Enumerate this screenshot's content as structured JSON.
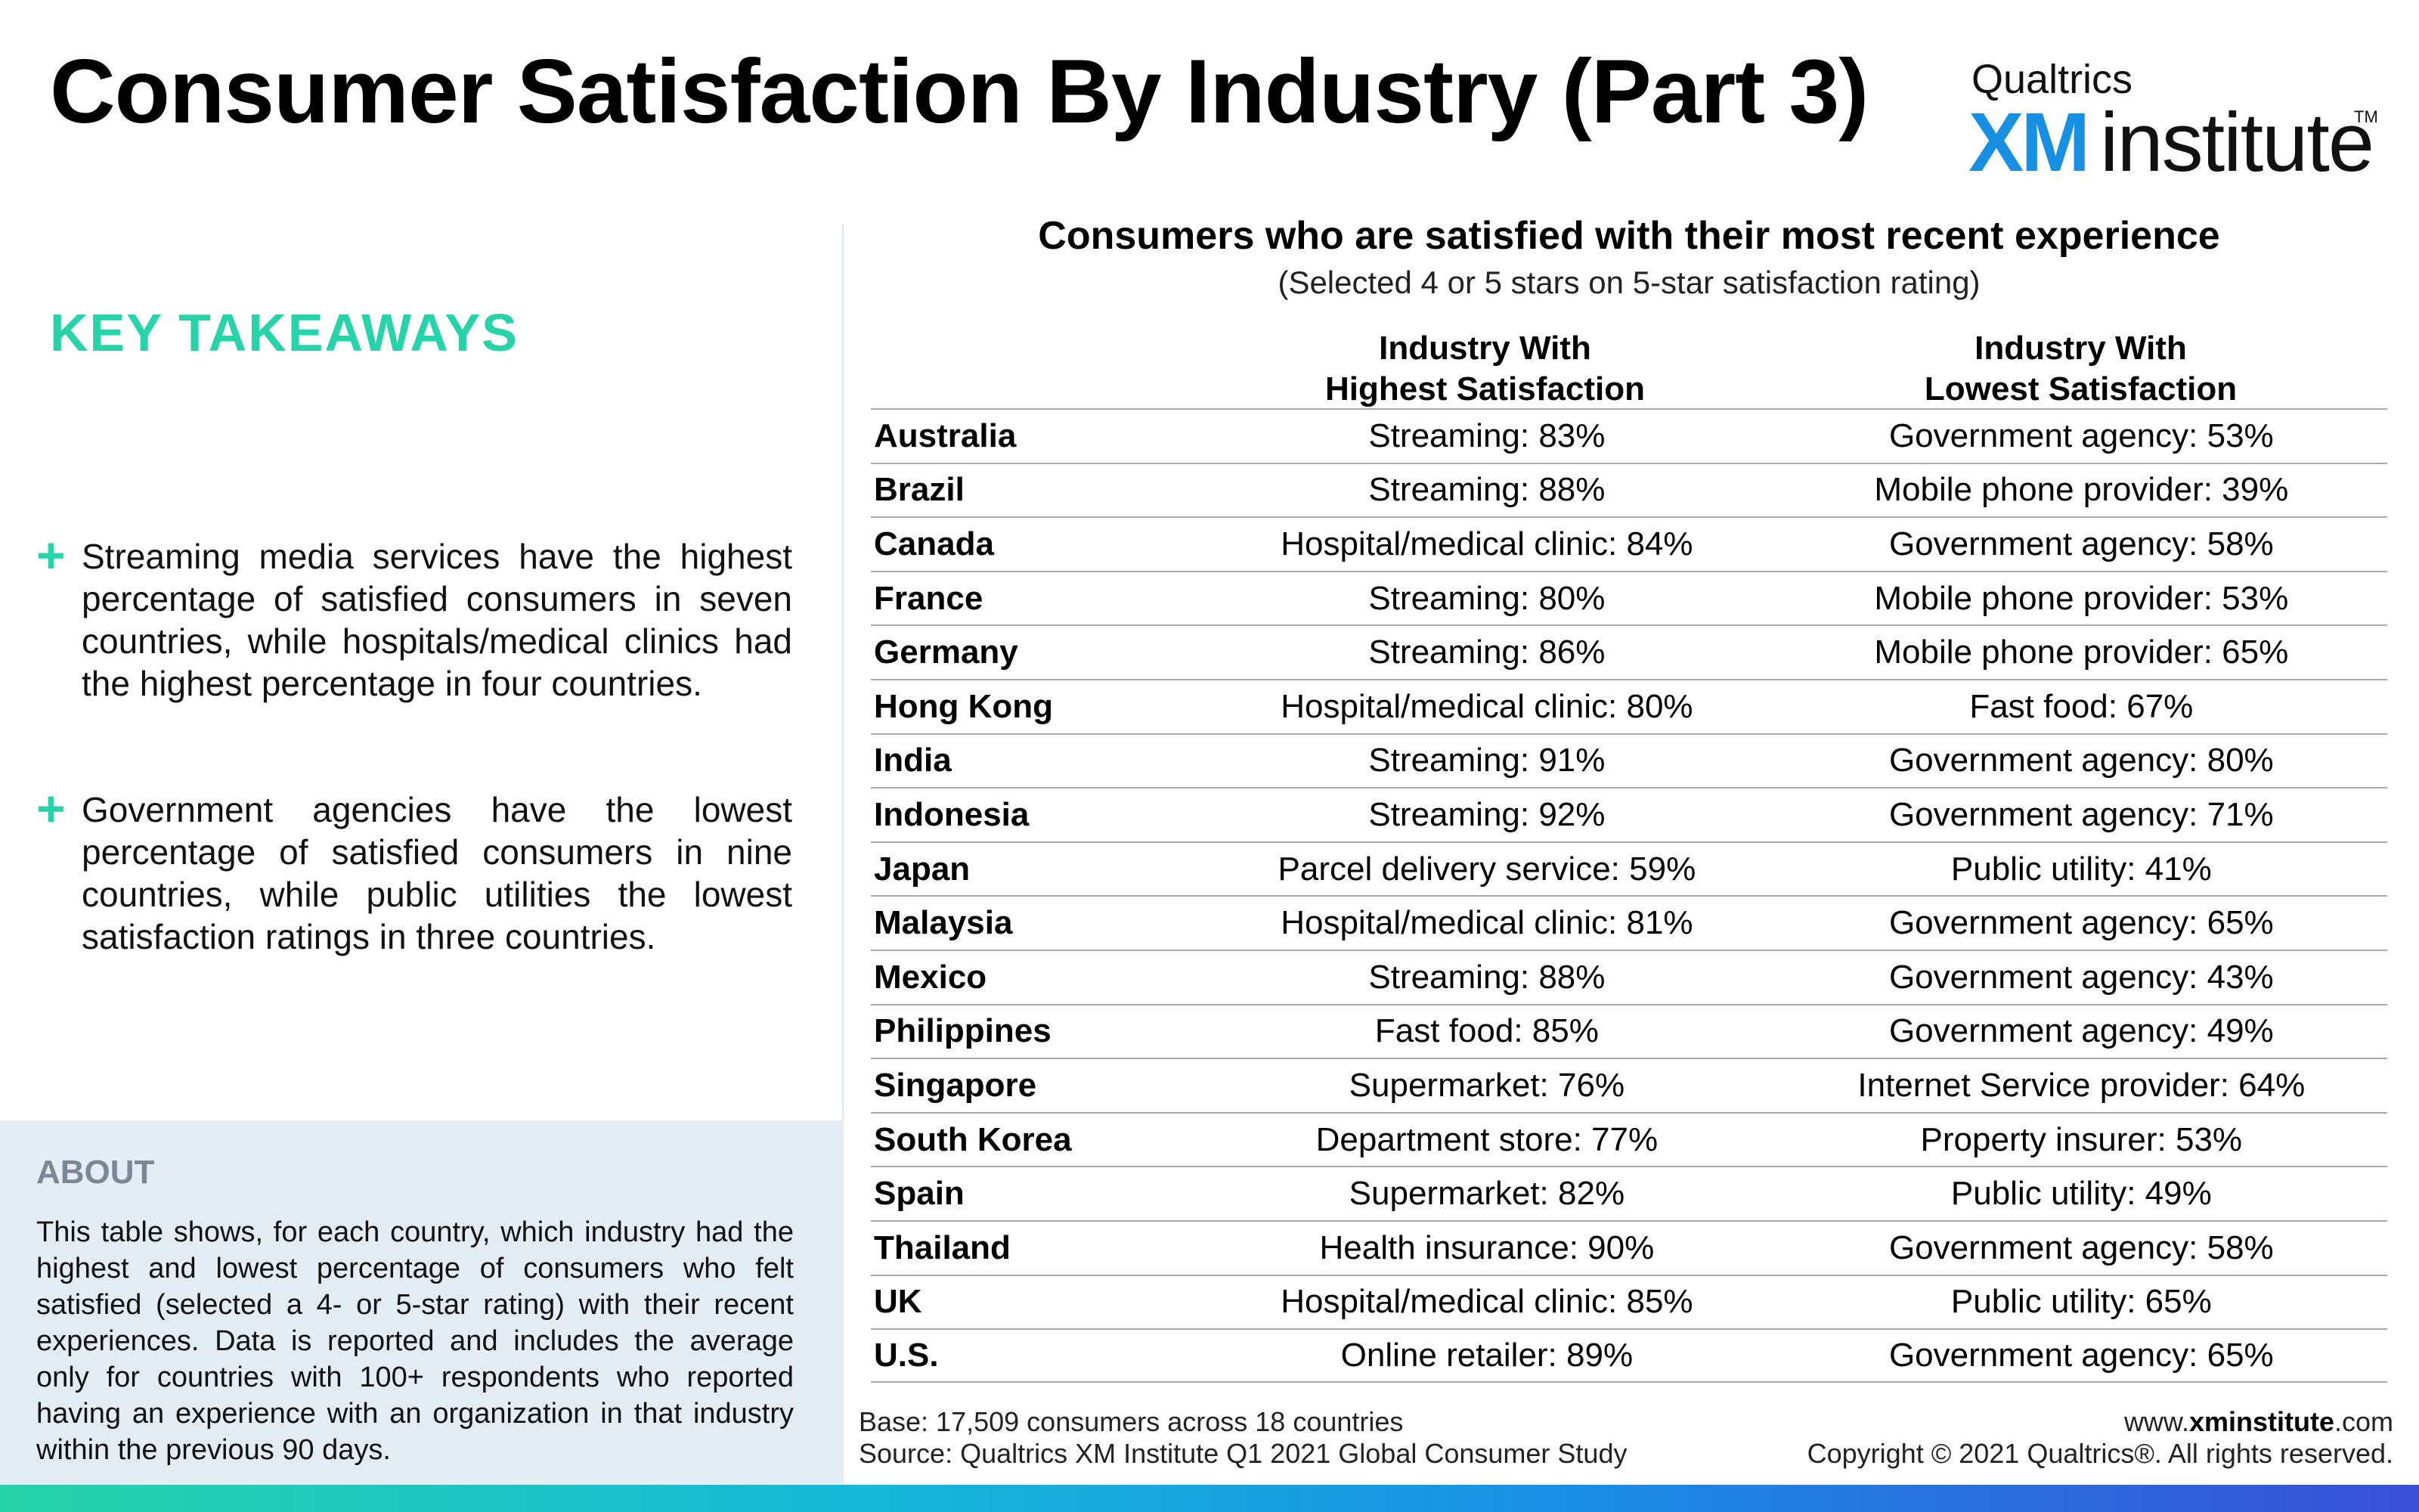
{
  "page": {
    "title": "Consumer Satisfaction By Industry (Part 3)"
  },
  "logo": {
    "top_text": "Qualtrics",
    "xm": "XM",
    "institute": "institute",
    "tm": "TM",
    "colors": {
      "xm": "#1790e4"
    }
  },
  "takeaways": {
    "heading": "KEY TAKEAWAYS",
    "bullet_icon": "+",
    "items": [
      "Streaming media services have the highest percentage of satisfied consumers in seven countries, while hospitals/medical clinics had the highest percentage in four countries.",
      "Government agencies have the lowest percentage of satisfied consumers in nine countries, while public utilities the lowest satisfaction ratings in three countries."
    ]
  },
  "about": {
    "heading": "ABOUT",
    "text": "This table shows, for each country, which industry had the highest and lowest percentage of consumers who felt satisfied (selected a 4- or 5-star rating) with their recent experiences. Data is reported and includes the average only for countries with 100+ respondents who reported having an experience with an organization in that industry within the previous 90 days."
  },
  "table": {
    "title": "Consumers who are satisfied with their most recent experience",
    "subtitle": "(Selected 4 or 5 stars on 5-star satisfaction rating)",
    "headers": {
      "highest_line1": "Industry With",
      "highest_line2": "Highest Satisfaction",
      "lowest_line1": "Industry With",
      "lowest_line2": "Lowest Satisfaction"
    },
    "rows": [
      {
        "country": "Australia",
        "highest": "Streaming: 83%",
        "lowest": "Government agency: 53%"
      },
      {
        "country": "Brazil",
        "highest": "Streaming: 88%",
        "lowest": "Mobile phone provider: 39%"
      },
      {
        "country": "Canada",
        "highest": "Hospital/medical clinic: 84%",
        "lowest": "Government agency: 58%"
      },
      {
        "country": "France",
        "highest": "Streaming: 80%",
        "lowest": "Mobile phone provider: 53%"
      },
      {
        "country": "Germany",
        "highest": "Streaming: 86%",
        "lowest": "Mobile phone provider: 65%"
      },
      {
        "country": "Hong Kong",
        "highest": "Hospital/medical clinic: 80%",
        "lowest": "Fast food: 67%"
      },
      {
        "country": "India",
        "highest": "Streaming: 91%",
        "lowest": "Government agency: 80%"
      },
      {
        "country": "Indonesia",
        "highest": "Streaming: 92%",
        "lowest": "Government agency: 71%"
      },
      {
        "country": "Japan",
        "highest": "Parcel delivery service: 59%",
        "lowest": "Public utility: 41%"
      },
      {
        "country": "Malaysia",
        "highest": "Hospital/medical clinic: 81%",
        "lowest": "Government agency: 65%"
      },
      {
        "country": "Mexico",
        "highest": "Streaming: 88%",
        "lowest": "Government agency: 43%"
      },
      {
        "country": "Philippines",
        "highest": "Fast food: 85%",
        "lowest": "Government agency: 49%"
      },
      {
        "country": "Singapore",
        "highest": "Supermarket: 76%",
        "lowest": "Internet Service provider: 64%"
      },
      {
        "country": "South Korea",
        "highest": "Department store: 77%",
        "lowest": "Property insurer: 53%"
      },
      {
        "country": "Spain",
        "highest": "Supermarket: 82%",
        "lowest": "Public utility: 49%"
      },
      {
        "country": "Thailand",
        "highest": "Health insurance: 90%",
        "lowest": "Government agency: 58%"
      },
      {
        "country": "UK",
        "highest": "Hospital/medical clinic: 85%",
        "lowest": "Public utility: 65%"
      },
      {
        "country": "U.S.",
        "highest": "Online retailer: 89%",
        "lowest": "Government agency: 65%"
      }
    ]
  },
  "footer": {
    "base": "Base: 17,509 consumers across 18 countries",
    "source": "Source: Qualtrics XM Institute Q1 2021 Global Consumer Study",
    "web_prefix": "www.",
    "web_bold": "xminstitute",
    "web_suffix": ".com",
    "copyright": "Copyright © 2021 Qualtrics®. All rights reserved."
  },
  "colors": {
    "accent_green": "#27d3a8",
    "about_background": "#e4ecf4",
    "about_heading": "#7a8896"
  }
}
